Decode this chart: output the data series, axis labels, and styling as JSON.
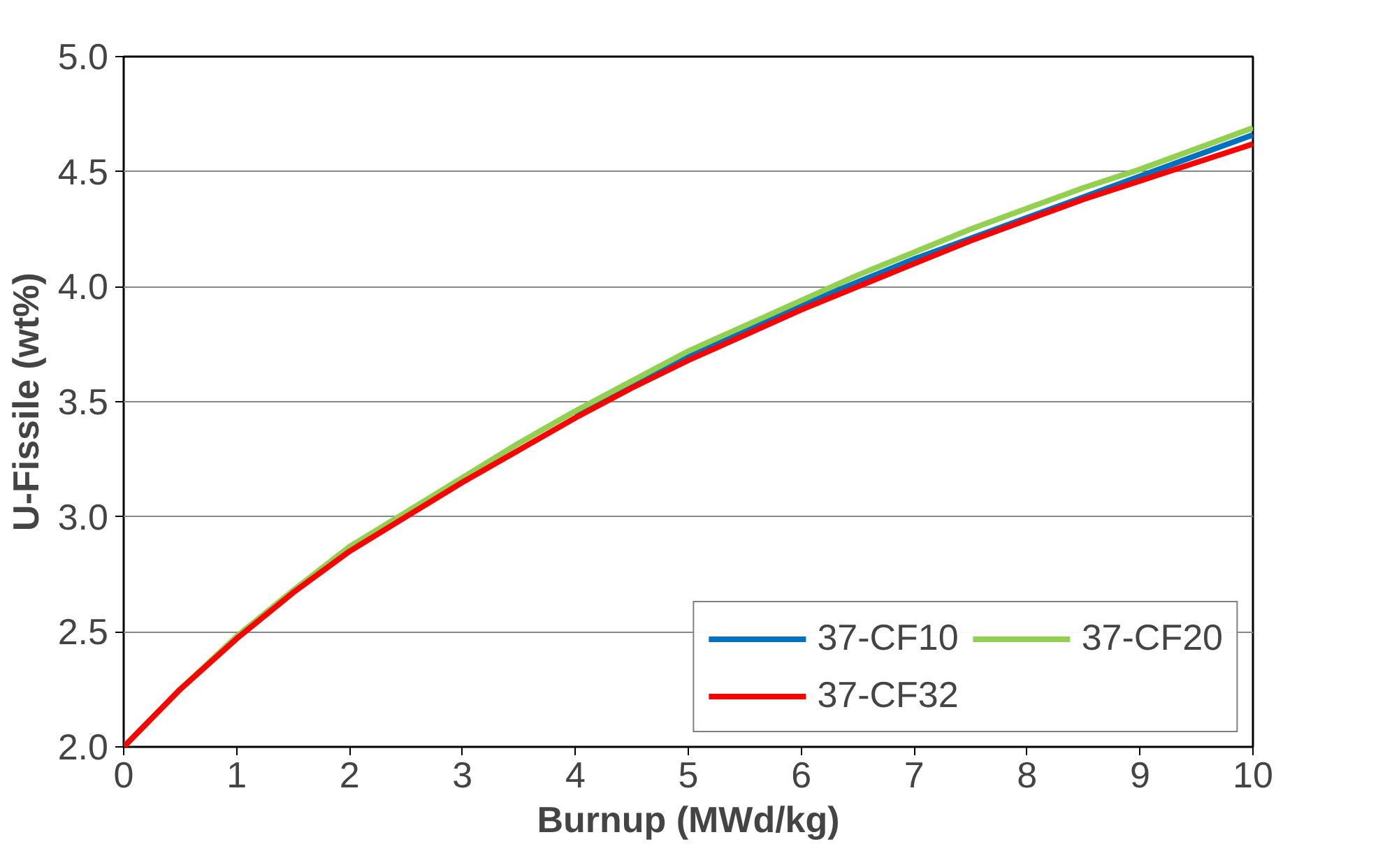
{
  "chart_data": {
    "type": "line",
    "xlabel": "Burnup (MWd/kg)",
    "ylabel": "U-Fissile (wt%)",
    "x": [
      0,
      0.5,
      1,
      1.5,
      2,
      2.5,
      3,
      3.5,
      4,
      4.5,
      5,
      5.5,
      6,
      6.5,
      7,
      7.5,
      8,
      8.5,
      9,
      9.5,
      10
    ],
    "series": [
      {
        "name": "37-CF10",
        "color": "#0070c0",
        "values": [
          null,
          null,
          null,
          null,
          null,
          null,
          null,
          null,
          3.44,
          3.57,
          3.7,
          3.81,
          3.92,
          4.02,
          4.12,
          4.21,
          4.3,
          4.39,
          4.48,
          4.57,
          4.66
        ]
      },
      {
        "name": "37-CF20",
        "color": "#92d050",
        "values": [
          2.0,
          2.25,
          2.48,
          2.68,
          2.87,
          3.02,
          3.17,
          3.32,
          3.46,
          3.59,
          3.72,
          3.83,
          3.94,
          4.05,
          4.15,
          4.25,
          4.34,
          4.43,
          4.51,
          4.6,
          4.69
        ]
      },
      {
        "name": "37-CF32",
        "color": "#ff0000",
        "values": [
          2.0,
          2.25,
          2.47,
          2.67,
          2.85,
          3.0,
          3.15,
          3.29,
          3.43,
          3.56,
          3.68,
          3.79,
          3.9,
          4.0,
          4.1,
          4.2,
          4.29,
          4.38,
          4.46,
          4.54,
          4.62
        ]
      }
    ],
    "xlim": [
      0,
      10
    ],
    "ylim": [
      2.0,
      5.0
    ],
    "xticks": [
      0,
      1,
      2,
      3,
      4,
      5,
      6,
      7,
      8,
      9,
      10
    ],
    "yticks": [
      {
        "value": 2.0,
        "label": "2.0"
      },
      {
        "value": 2.5,
        "label": "2.5"
      },
      {
        "value": 3.0,
        "label": "3.0"
      },
      {
        "value": 3.5,
        "label": "3.5"
      },
      {
        "value": 4.0,
        "label": "4.0"
      },
      {
        "value": 4.5,
        "label": "4.5"
      },
      {
        "value": 5.0,
        "label": "5.0"
      }
    ],
    "grid": "y",
    "legend": "bottom right",
    "marker": "none",
    "line_style": "solid"
  }
}
